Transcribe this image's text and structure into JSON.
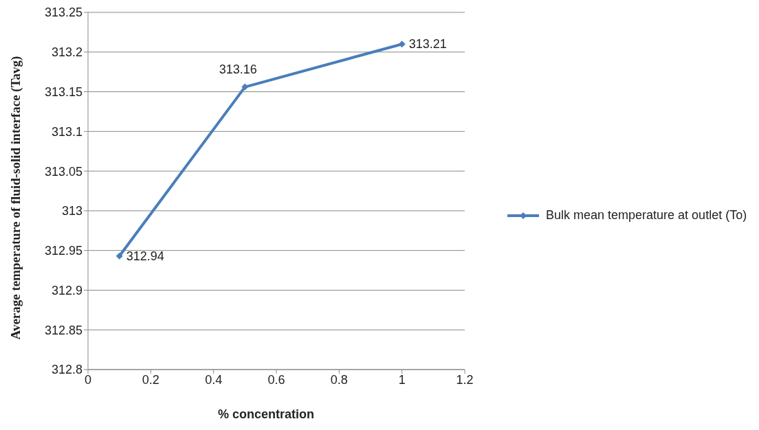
{
  "chart_data": {
    "type": "line",
    "xlabel": "% concentration",
    "ylabel": "Average temperature of fluid-solid interface (Tavg)",
    "x": [
      0.1,
      0.5,
      1
    ],
    "series": [
      {
        "name": "Bulk mean temperature at outlet (To)",
        "color": "#4a7ebb",
        "values": [
          312.943,
          313.156,
          313.21
        ],
        "value_labels": [
          "312.94",
          "313.16",
          "313.21"
        ]
      }
    ],
    "xlim": [
      0,
      1.2
    ],
    "xticks": [
      0,
      0.2,
      0.4,
      0.6,
      0.8,
      1,
      1.2
    ],
    "ylim": [
      312.8,
      313.25
    ],
    "yticks": [
      312.8,
      312.85,
      312.9,
      312.95,
      313,
      313.05,
      313.1,
      313.15,
      313.2,
      313.25
    ],
    "grid": "y",
    "legend": "right",
    "marker": "diamond",
    "line_style": "solid"
  }
}
